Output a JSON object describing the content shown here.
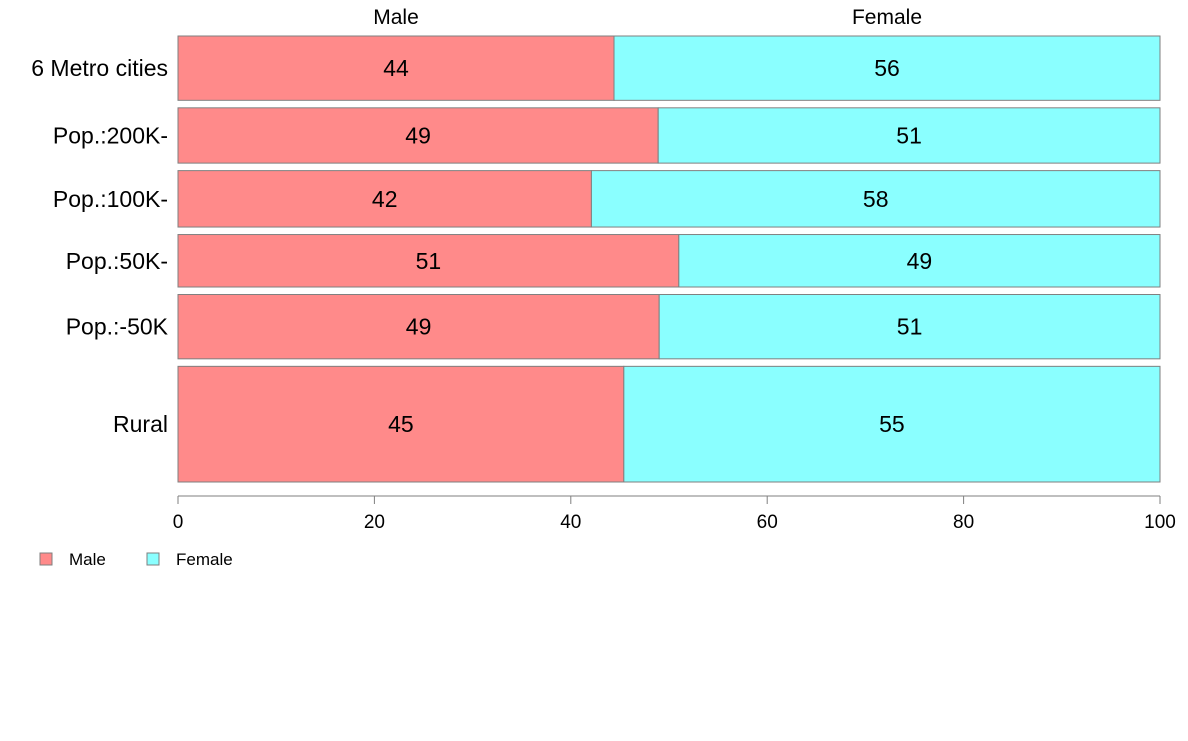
{
  "chart_data": {
    "type": "bar",
    "orientation": "horizontal",
    "stacked": true,
    "categories": [
      "6 Metro cities",
      "Pop.:200K-",
      "Pop.:100K-",
      "Pop.:50K-",
      "Pop.:-50K",
      "Rural"
    ],
    "series": [
      {
        "name": "Male",
        "values": [
          44,
          49,
          42,
          51,
          49,
          45
        ],
        "exact_values": [
          44.4,
          48.9,
          42.1,
          51.0,
          49.0,
          45.4
        ],
        "color": "#FF8A8A"
      },
      {
        "name": "Female",
        "values": [
          56,
          51,
          58,
          49,
          51,
          55
        ],
        "color": "#8AFFFF"
      }
    ],
    "column_headers": [
      "Male",
      "Female"
    ],
    "bar_weights": [
      1.14,
      0.98,
      1.0,
      0.93,
      1.14,
      2.05
    ],
    "xlim": [
      0,
      100
    ],
    "xticks": [
      0,
      20,
      40,
      60,
      80,
      100
    ],
    "grid": false,
    "legend": {
      "position": "bottom-left",
      "entries": [
        "Male",
        "Female"
      ]
    },
    "colors": {
      "male": "#FF8A8A",
      "female": "#8AFFFF",
      "edge": "#7F7F7F",
      "axis": "#7F7F7F"
    }
  }
}
